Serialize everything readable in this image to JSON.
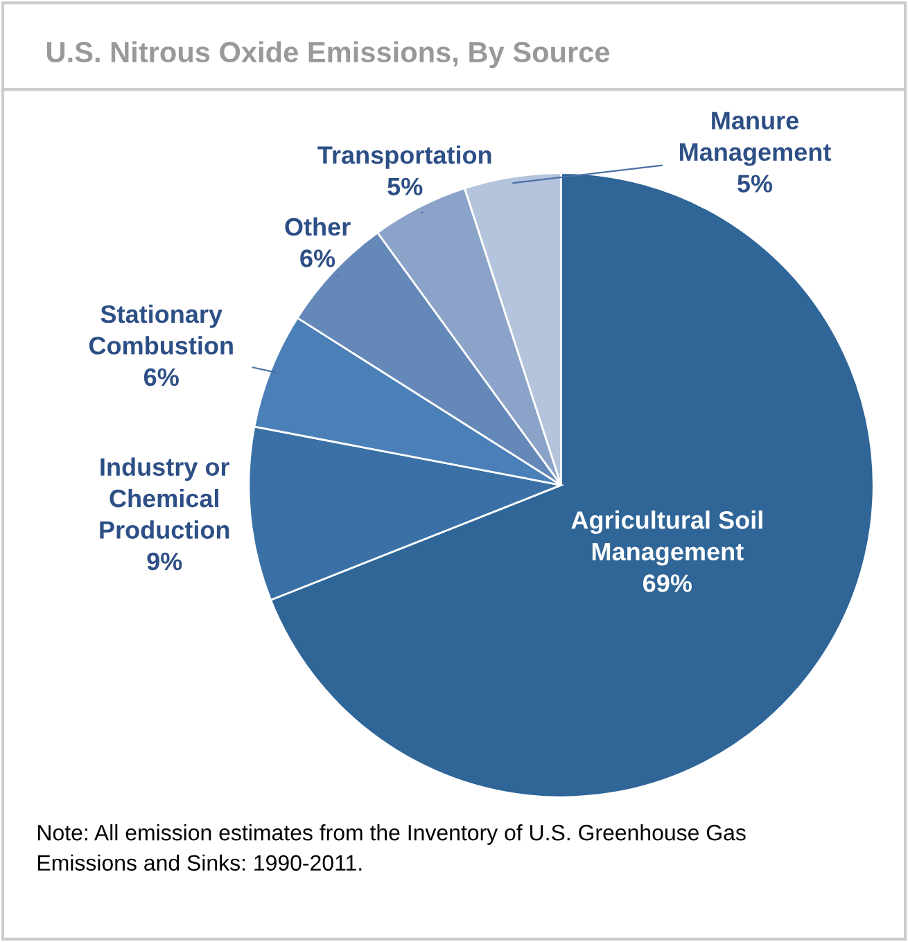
{
  "chart_data": {
    "type": "pie",
    "title": "U.S. Nitrous Oxide Emissions, By Source",
    "categories": [
      "Agricultural Soil\nManagement",
      "Industry or\nChemical\nProduction",
      "Stationary\nCombustion",
      "Other",
      "Transportation",
      "Manure\nManagement"
    ],
    "values": [
      69,
      9,
      6,
      6,
      5,
      5
    ],
    "colors": [
      "#2f6597",
      "#3a70a6",
      "#4b7fb8",
      "#6488b8",
      "#8ba3c8",
      "#b3c4dc"
    ],
    "value_labels": [
      "69%",
      "9%",
      "6%",
      "6%",
      "5%",
      "5%"
    ],
    "annotations": [
      "Note: All emission estimates from the Inventory of U.S. Greenhouse Gas\nEmissions and Sinks: 1990-2011."
    ]
  }
}
